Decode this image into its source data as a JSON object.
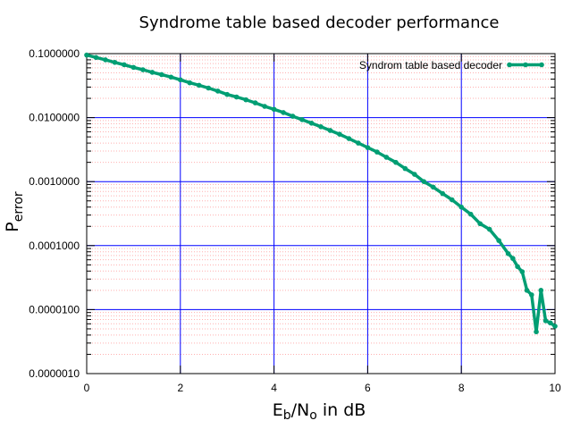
{
  "chart_data": {
    "type": "line",
    "title": "Syndrome table based decoder performance",
    "xlabel": {
      "main": "E",
      "sub1": "b",
      "mid": "/N",
      "sub2": "o",
      "rest": " in dB"
    },
    "ylabel": {
      "main": "P",
      "sub": "error"
    },
    "xlim": [
      0,
      10
    ],
    "ylim": [
      1e-06,
      0.1
    ],
    "yscale": "log",
    "grid": true,
    "legend_position": "top-right",
    "x_ticks": [
      "0",
      "2",
      "4",
      "6",
      "8",
      "10"
    ],
    "y_ticks": [
      "0.0000010",
      "0.0000100",
      "0.0001000",
      "0.0010000",
      "0.0100000",
      "0.1000000"
    ],
    "colors": {
      "series": "#009e73",
      "major_grid": "#0000ff",
      "minor_grid": "#ffb0b0",
      "axes": "#000000"
    },
    "series": [
      {
        "name": "Syndrom table based decoder",
        "x": [
          0,
          0.2,
          0.4,
          0.6,
          0.8,
          1.0,
          1.2,
          1.4,
          1.6,
          1.8,
          2.0,
          2.2,
          2.4,
          2.6,
          2.8,
          3.0,
          3.2,
          3.4,
          3.6,
          3.8,
          4.0,
          4.2,
          4.4,
          4.6,
          4.8,
          5.0,
          5.2,
          5.4,
          5.6,
          5.8,
          6.0,
          6.2,
          6.4,
          6.6,
          6.8,
          7.0,
          7.2,
          7.4,
          7.6,
          7.8,
          8.0,
          8.2,
          8.4,
          8.6,
          8.8,
          9.0,
          9.1,
          9.2,
          9.3,
          9.4,
          9.5,
          9.6,
          9.7,
          9.8,
          9.9,
          10.0
        ],
        "values": [
          0.095,
          0.087,
          0.08,
          0.073,
          0.067,
          0.061,
          0.056,
          0.051,
          0.047,
          0.043,
          0.039,
          0.035,
          0.032,
          0.029,
          0.026,
          0.023,
          0.021,
          0.019,
          0.017,
          0.015,
          0.0135,
          0.012,
          0.0105,
          0.0093,
          0.0082,
          0.0072,
          0.0063,
          0.0055,
          0.0047,
          0.004,
          0.0034,
          0.0029,
          0.0024,
          0.002,
          0.0016,
          0.0013,
          0.001,
          0.00082,
          0.00065,
          0.00052,
          0.0004,
          0.00031,
          0.00022,
          0.00018,
          0.00012,
          7.5e-05,
          6.3e-05,
          4.7e-05,
          3.9e-05,
          2e-05,
          1.7e-05,
          4.5e-06,
          2e-05,
          6.7e-06,
          6.2e-06,
          5.5e-06
        ]
      }
    ]
  }
}
